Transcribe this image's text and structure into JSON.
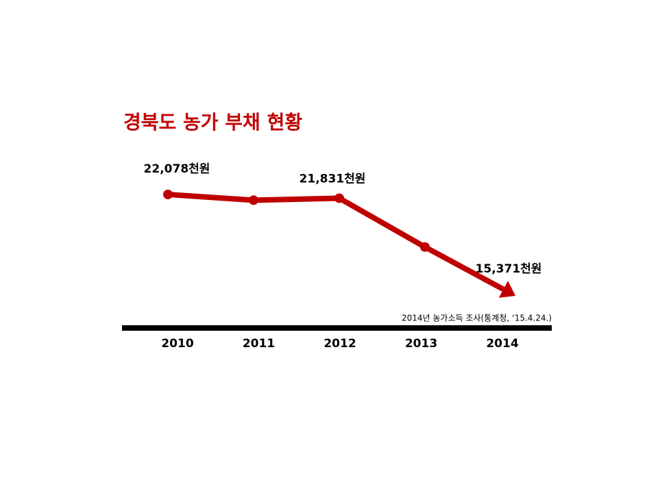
{
  "chart_data": {
    "type": "line",
    "title": "경북도 농가 부채 현황",
    "categories": [
      "2010",
      "2011",
      "2012",
      "2013",
      "2014"
    ],
    "values": [
      22078,
      21700,
      21831,
      18600,
      15371
    ],
    "value_labels": [
      "22,078천원",
      null,
      "21,831천원",
      null,
      "15,371천원"
    ],
    "color": "#c00000",
    "source": "2014년 농가소득 조사(통계청, ‘15.4.24.)"
  }
}
